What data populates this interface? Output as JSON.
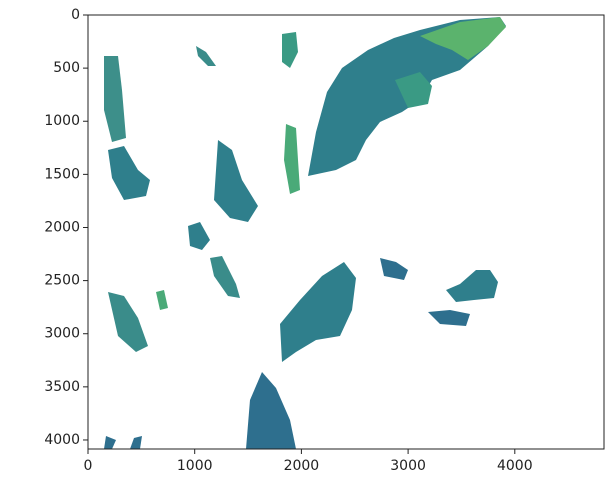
{
  "chart_data": {
    "type": "image",
    "xlim": [
      0,
      4836
    ],
    "ylim": [
      4085,
      0
    ],
    "xticks": [
      0,
      1000,
      2000,
      3000,
      4000
    ],
    "yticks": [
      0,
      500,
      1000,
      1500,
      2000,
      2500,
      3000,
      3500,
      4000
    ]
  }
}
